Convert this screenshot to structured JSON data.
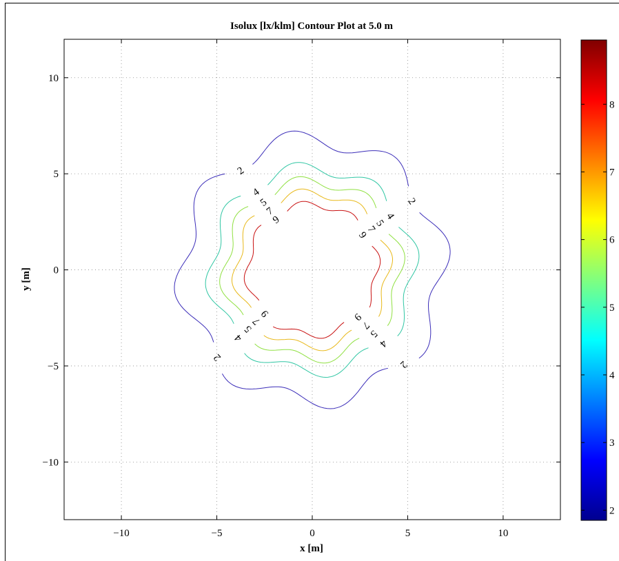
{
  "chart_data": {
    "type": "contour",
    "title": "Isolux [lx/klm] Contour Plot at 5.0 m",
    "xlabel": "x [m]",
    "ylabel": "y [m]",
    "xlim": [
      -13,
      13
    ],
    "ylim": [
      -13,
      12
    ],
    "xticks": [
      -10,
      -5,
      0,
      5,
      10
    ],
    "yticks": [
      -10,
      -5,
      0,
      5,
      10
    ],
    "xtick_labels": [
      "−10",
      "−5",
      "0",
      "5",
      "10"
    ],
    "ytick_labels": [
      "−10",
      "−5",
      "0",
      "5",
      "10"
    ],
    "grid": true,
    "colormap": "jet",
    "colorbar": {
      "limits": [
        1.85,
        8.95
      ],
      "ticks": [
        2,
        3,
        4,
        5,
        6,
        7,
        8
      ],
      "tick_labels": [
        "2",
        "3",
        "4",
        "5",
        "6",
        "7",
        "8"
      ]
    },
    "levels": [
      {
        "value": 2,
        "radius": 6.8,
        "amplitude": 0.5,
        "phase": 0.3,
        "color": "#3a2cb8",
        "labels": [
          "2",
          "2",
          "2",
          "2"
        ]
      },
      {
        "value": 4,
        "radius": 5.3,
        "amplitude": 0.35,
        "phase": 0.3,
        "color": "#2fc6a3",
        "labels": [
          "4",
          "4",
          "4",
          "4"
        ]
      },
      {
        "value": 5,
        "radius": 4.6,
        "amplitude": 0.3,
        "phase": 0.3,
        "color": "#8fe040",
        "labels": [
          "5",
          "5",
          "5",
          "5"
        ]
      },
      {
        "value": 7,
        "radius": 4.0,
        "amplitude": 0.25,
        "phase": 0.3,
        "color": "#e8b818",
        "labels": [
          "7",
          "7",
          "7",
          "7"
        ]
      },
      {
        "value": 9,
        "radius": 3.4,
        "amplitude": 0.2,
        "phase": 0.3,
        "color": "#c81010",
        "labels": [
          "9",
          "9",
          "9",
          "9"
        ]
      }
    ]
  }
}
